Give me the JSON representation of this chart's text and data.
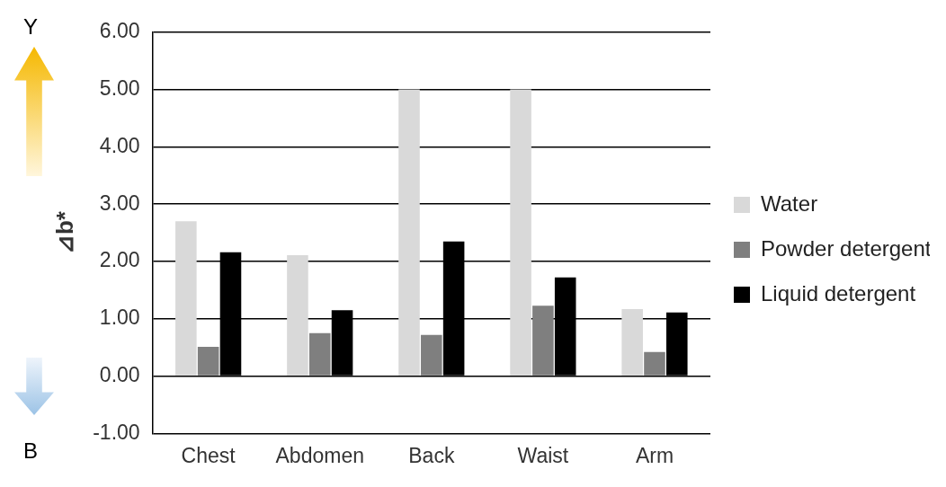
{
  "chart_data": {
    "type": "bar",
    "ylabel": "⊿b*",
    "categories": [
      "Chest",
      "Abdomen",
      "Back",
      "Waist",
      "Arm"
    ],
    "series": [
      {
        "name": "Water",
        "color": "#d9d9d9",
        "values": [
          2.7,
          2.11,
          5.0,
          5.0,
          1.17
        ]
      },
      {
        "name": "Powder detergent",
        "color": "#7f7f7f",
        "values": [
          0.51,
          0.75,
          0.72,
          1.23,
          0.42
        ]
      },
      {
        "name": "Liquid detergent",
        "color": "#000000",
        "values": [
          2.16,
          1.15,
          2.35,
          1.72,
          1.11
        ]
      }
    ],
    "ylim": [
      -1,
      6
    ],
    "yticks": [
      {
        "value": -1,
        "label": "-1.00"
      },
      {
        "value": 0,
        "label": "0.00"
      },
      {
        "value": 1,
        "label": "1.00"
      },
      {
        "value": 2,
        "label": "2.00"
      },
      {
        "value": 3,
        "label": "3.00"
      },
      {
        "value": 4,
        "label": "4.00"
      },
      {
        "value": 5,
        "label": "5.00"
      },
      {
        "value": 6,
        "label": "6.00"
      }
    ],
    "grid": "y",
    "legend": "right",
    "annotations": [
      "Y",
      "B"
    ]
  }
}
